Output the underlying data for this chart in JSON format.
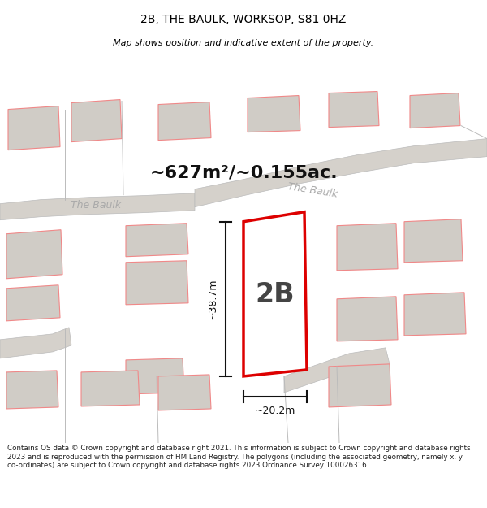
{
  "title": "2B, THE BAULK, WORKSOP, S81 0HZ",
  "subtitle": "Map shows position and indicative extent of the property.",
  "area_text": "~627m²/~0.155ac.",
  "label_2b": "2B",
  "dim_height": "~38.7m",
  "dim_width": "~20.2m",
  "road_label_left": "The Baulk",
  "road_label_right": "The Baulk",
  "footer": "Contains OS data © Crown copyright and database right 2021. This information is subject to Crown copyright and database rights 2023 and is reproduced with the permission of HM Land Registry. The polygons (including the associated geometry, namely x, y co-ordinates) are subject to Crown copyright and database rights 2023 Ordnance Survey 100026316.",
  "bg_color": "#eeebe5",
  "plot_fill": "#ffffff",
  "plot_edge": "#dd0000",
  "road_color": "#d5d1cb",
  "building_fill": "#d0ccc6",
  "building_edge": "#f08888",
  "dim_color": "#111111",
  "footer_bg": "#ffffff",
  "title_bg": "#ffffff"
}
